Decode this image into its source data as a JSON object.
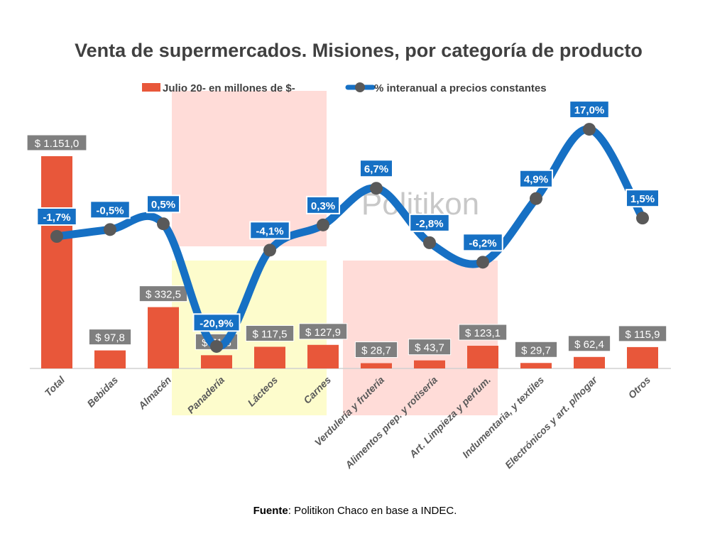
{
  "chart_data": {
    "type": "bar+line",
    "title": "Venta de supermercados. Misiones, por categoría de producto",
    "categories": [
      "Total",
      "Bebidas",
      "Almacén",
      "Panadería",
      "Lácteos",
      "Carnes",
      "Verdulería y frutería",
      "Alimentos prep. y rotisería",
      "Art. Limpieza y perfum.",
      "Indumentaria, y textiles",
      "Electrónicos y art. p/hogar",
      "Otros"
    ],
    "series": [
      {
        "name": "Julio 20- en millones de $-",
        "type": "bar",
        "color": "#e8573a",
        "values": [
          1151.0,
          97.8,
          332.5,
          71.8,
          117.5,
          127.9,
          28.7,
          43.7,
          123.1,
          29.7,
          62.4,
          115.9
        ],
        "labels": [
          "$ 1.151,0",
          "$ 97,8",
          "$ 332,5",
          "$ 71,8",
          "$ 117,5",
          "$ 127,9",
          "$ 28,7",
          "$ 43,7",
          "$ 123,1",
          "$ 29,7",
          "$ 62,4",
          "$ 115,9"
        ]
      },
      {
        "name": "% interanual a precios constantes",
        "type": "line",
        "color": "#1670c4",
        "marker_color": "#595959",
        "values": [
          -1.7,
          -0.5,
          0.5,
          -20.9,
          -4.1,
          0.3,
          6.7,
          -2.8,
          -6.2,
          4.9,
          17.0,
          1.5
        ],
        "labels": [
          "-1,7%",
          "-0,5%",
          "0,5%",
          "-20,9%",
          "-4,1%",
          "0,3%",
          "6,7%",
          "-2,8%",
          "-6,2%",
          "4,9%",
          "17,0%",
          "1,5%"
        ]
      }
    ],
    "legend": "top",
    "grid": false,
    "watermark": "Politikon",
    "source_bold": "Fuente",
    "source_text": ": Politikon Chaco en base a INDEC."
  }
}
